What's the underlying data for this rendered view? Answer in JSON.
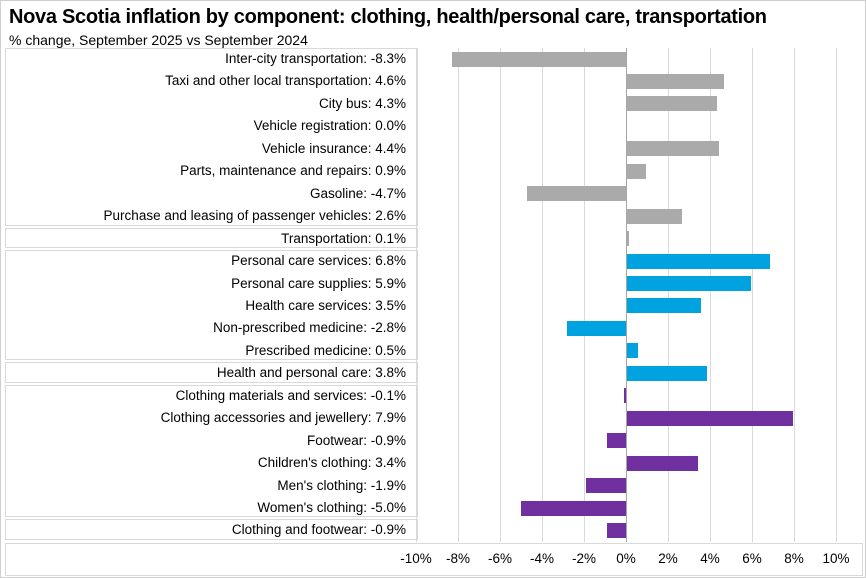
{
  "header": {
    "title": "Nova Scotia inflation by component: clothing, health/personal care, transportation",
    "subtitle": "% change, September 2025 vs September 2024"
  },
  "colors": {
    "transportation": "#aaaaaa",
    "health_personal_care": "#00a3e0",
    "clothing": "#7030a0",
    "gridline": "#d9d9d9",
    "zero_line": "#a6a6a6",
    "box_border": "#d9d9d9",
    "text": "#000000"
  },
  "chart_data": {
    "type": "bar",
    "orientation": "horizontal",
    "unit": "%",
    "xlim": [
      -10,
      10
    ],
    "x_tick_values": [
      -10,
      -8,
      -6,
      -4,
      -2,
      0,
      2,
      4,
      6,
      8,
      10
    ],
    "x_tick_labels": [
      "-10%",
      "-8%",
      "-6%",
      "-4%",
      "-2%",
      "0%",
      "2%",
      "4%",
      "6%",
      "8%",
      "10%"
    ],
    "grid": true,
    "legend": "none",
    "groups": [
      {
        "id": "transportation",
        "color": "#aaaaaa"
      },
      {
        "id": "health_personal_care",
        "color": "#00a3e0"
      },
      {
        "id": "clothing",
        "color": "#7030a0"
      }
    ],
    "rows": [
      {
        "label": "Inter-city transportation",
        "value": -8.3,
        "value_text": "-8.3%",
        "group": "transportation",
        "summary": false
      },
      {
        "label": "Taxi and other local transportation",
        "value": 4.6,
        "value_text": "4.6%",
        "group": "transportation",
        "summary": false
      },
      {
        "label": "City bus",
        "value": 4.3,
        "value_text": "4.3%",
        "group": "transportation",
        "summary": false
      },
      {
        "label": "Vehicle registration",
        "value": 0.0,
        "value_text": "0.0%",
        "group": "transportation",
        "summary": false
      },
      {
        "label": "Vehicle insurance",
        "value": 4.4,
        "value_text": "4.4%",
        "group": "transportation",
        "summary": false
      },
      {
        "label": "Parts, maintenance and repairs",
        "value": 0.9,
        "value_text": "0.9%",
        "group": "transportation",
        "summary": false
      },
      {
        "label": "Gasoline",
        "value": -4.7,
        "value_text": "-4.7%",
        "group": "transportation",
        "summary": false
      },
      {
        "label": "Purchase and leasing of passenger vehicles",
        "value": 2.6,
        "value_text": "2.6%",
        "group": "transportation",
        "summary": false
      },
      {
        "label": "Transportation",
        "value": 0.1,
        "value_text": "0.1%",
        "group": "transportation",
        "summary": true
      },
      {
        "label": "Personal care services",
        "value": 6.8,
        "value_text": "6.8%",
        "group": "health_personal_care",
        "summary": false
      },
      {
        "label": "Personal care supplies",
        "value": 5.9,
        "value_text": "5.9%",
        "group": "health_personal_care",
        "summary": false
      },
      {
        "label": "Health care services",
        "value": 3.5,
        "value_text": "3.5%",
        "group": "health_personal_care",
        "summary": false
      },
      {
        "label": "Non-prescribed medicine",
        "value": -2.8,
        "value_text": "-2.8%",
        "group": "health_personal_care",
        "summary": false
      },
      {
        "label": "Prescribed medicine",
        "value": 0.5,
        "value_text": "0.5%",
        "group": "health_personal_care",
        "summary": false
      },
      {
        "label": "Health and personal care",
        "value": 3.8,
        "value_text": "3.8%",
        "group": "health_personal_care",
        "summary": true
      },
      {
        "label": "Clothing materials and services",
        "value": -0.1,
        "value_text": "-0.1%",
        "group": "clothing",
        "summary": false
      },
      {
        "label": "Clothing accessories and jewellery",
        "value": 7.9,
        "value_text": "7.9%",
        "group": "clothing",
        "summary": false
      },
      {
        "label": "Footwear",
        "value": -0.9,
        "value_text": "-0.9%",
        "group": "clothing",
        "summary": false
      },
      {
        "label": "Children's clothing",
        "value": 3.4,
        "value_text": "3.4%",
        "group": "clothing",
        "summary": false
      },
      {
        "label": "Men's clothing",
        "value": -1.9,
        "value_text": "-1.9%",
        "group": "clothing",
        "summary": false
      },
      {
        "label": "Women's clothing",
        "value": -5.0,
        "value_text": "-5.0%",
        "group": "clothing",
        "summary": false
      },
      {
        "label": "Clothing and footwear",
        "value": -0.9,
        "value_text": "-0.9%",
        "group": "clothing",
        "summary": true
      }
    ]
  }
}
